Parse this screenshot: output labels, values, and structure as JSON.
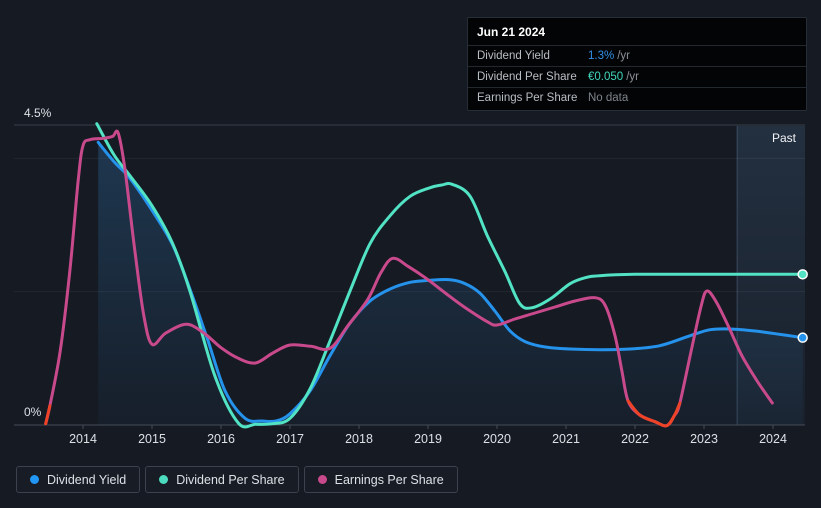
{
  "tooltip": {
    "date": "Jun 21 2024",
    "rows": [
      {
        "label": "Dividend Yield",
        "value": "1.3%",
        "suffix": "/yr",
        "value_color": "#3291e8"
      },
      {
        "label": "Dividend Per Share",
        "value": "€0.050",
        "suffix": "/yr",
        "value_color": "#40d9bd"
      },
      {
        "label": "Earnings Per Share",
        "value": "No data",
        "suffix": "",
        "value_color": "#7f858d"
      }
    ]
  },
  "legend": [
    {
      "label": "Dividend Yield",
      "color": "#2196f3"
    },
    {
      "label": "Dividend Per Share",
      "color": "#4ddbc0"
    },
    {
      "label": "Earnings Per Share",
      "color": "#c94a8c"
    }
  ],
  "labels": {
    "y_top": "4.5%",
    "y_bottom": "0%",
    "past": "Past"
  },
  "colors": {
    "background": "#151a23",
    "yield_line": "#2592ec",
    "dps_line": "#52e2c4",
    "eps_line": "#c94a8c",
    "eps_negative": "#ef4327",
    "grid_strong": "#39404b",
    "grid_faint": "rgba(255,255,255,0.06)",
    "axis": "#454b54",
    "fill_top": "rgba(49,116,173,0.32)",
    "fill_bottom": "rgba(49,116,173,0.05)",
    "past_band_top": "rgba(104,156,208,0.17)",
    "past_band_bottom": "rgba(104,156,208,0.05)",
    "past_divider": "rgba(140,180,220,0.28)"
  },
  "chart_data": {
    "type": "line",
    "title": "Dividend history",
    "x_range": [
      2013.0,
      2024.46
    ],
    "ylim_percent": [
      0,
      4.5
    ],
    "y_gridlines_percent": [
      0,
      2,
      4,
      4.5
    ],
    "x_ticks": [
      "2014",
      "2015",
      "2016",
      "2017",
      "2018",
      "2019",
      "2020",
      "2021",
      "2022",
      "2023",
      "2024"
    ],
    "x_tick_years": [
      2014,
      2015,
      2016,
      2017,
      2018,
      2019,
      2020,
      2021,
      2022,
      2023,
      2024
    ],
    "past_region_start_year": 2023.48,
    "legend_position": "bottom",
    "series": [
      {
        "name": "Dividend Yield",
        "unit": "%",
        "end_value_label": "1.3% /yr",
        "area_fill": true,
        "end_dot": true,
        "points": [
          [
            2014.22,
            4.24
          ],
          [
            2014.45,
            3.95
          ],
          [
            2014.68,
            3.7
          ],
          [
            2015.0,
            3.22
          ],
          [
            2015.3,
            2.7
          ],
          [
            2015.55,
            2.04
          ],
          [
            2015.8,
            1.3
          ],
          [
            2016.06,
            0.51
          ],
          [
            2016.35,
            0.1
          ],
          [
            2016.6,
            0.06
          ],
          [
            2016.8,
            0.06
          ],
          [
            2017.0,
            0.17
          ],
          [
            2017.29,
            0.51
          ],
          [
            2017.58,
            1.04
          ],
          [
            2017.87,
            1.53
          ],
          [
            2018.16,
            1.86
          ],
          [
            2018.45,
            2.04
          ],
          [
            2018.74,
            2.14
          ],
          [
            2019.03,
            2.17
          ],
          [
            2019.32,
            2.18
          ],
          [
            2019.54,
            2.12
          ],
          [
            2019.75,
            1.98
          ],
          [
            2019.97,
            1.71
          ],
          [
            2020.19,
            1.41
          ],
          [
            2020.41,
            1.25
          ],
          [
            2020.7,
            1.17
          ],
          [
            2021.06,
            1.14
          ],
          [
            2021.49,
            1.13
          ],
          [
            2021.93,
            1.14
          ],
          [
            2022.36,
            1.19
          ],
          [
            2022.8,
            1.34
          ],
          [
            2023.09,
            1.43
          ],
          [
            2023.38,
            1.44
          ],
          [
            2023.74,
            1.41
          ],
          [
            2024.03,
            1.37
          ],
          [
            2024.43,
            1.31
          ]
        ]
      },
      {
        "name": "Dividend Per Share",
        "unit": "display_percent_scale",
        "end_value_label": "€0.050 /yr",
        "area_fill": false,
        "end_dot": true,
        "points": [
          [
            2014.2,
            4.52
          ],
          [
            2014.45,
            4.05
          ],
          [
            2014.68,
            3.74
          ],
          [
            2015.0,
            3.29
          ],
          [
            2015.3,
            2.72
          ],
          [
            2015.55,
            2.01
          ],
          [
            2015.91,
            0.74
          ],
          [
            2016.25,
            0.03
          ],
          [
            2016.5,
            0.01
          ],
          [
            2016.75,
            0.02
          ],
          [
            2017.0,
            0.1
          ],
          [
            2017.29,
            0.54
          ],
          [
            2017.58,
            1.26
          ],
          [
            2017.87,
            2.01
          ],
          [
            2018.16,
            2.72
          ],
          [
            2018.45,
            3.14
          ],
          [
            2018.74,
            3.43
          ],
          [
            2019.03,
            3.56
          ],
          [
            2019.2,
            3.6
          ],
          [
            2019.35,
            3.61
          ],
          [
            2019.61,
            3.43
          ],
          [
            2019.86,
            2.84
          ],
          [
            2020.12,
            2.29
          ],
          [
            2020.33,
            1.82
          ],
          [
            2020.51,
            1.76
          ],
          [
            2020.77,
            1.89
          ],
          [
            2021.06,
            2.12
          ],
          [
            2021.28,
            2.21
          ],
          [
            2021.49,
            2.24
          ],
          [
            2022.0,
            2.26
          ],
          [
            2023.0,
            2.26
          ],
          [
            2024.43,
            2.26
          ]
        ]
      },
      {
        "name": "Earnings Per Share",
        "unit": "display_percent_scale",
        "end_value_label": "No data",
        "area_fill": false,
        "end_dot": false,
        "negative_color_ranges_year": [
          [
            2013.4,
            2013.54
          ],
          [
            2021.88,
            2022.67
          ]
        ],
        "points": [
          [
            2013.46,
            0.02
          ],
          [
            2013.52,
            0.29
          ],
          [
            2013.67,
            1.11
          ],
          [
            2013.81,
            2.32
          ],
          [
            2013.93,
            3.67
          ],
          [
            2014.0,
            4.19
          ],
          [
            2014.1,
            4.28
          ],
          [
            2014.3,
            4.3
          ],
          [
            2014.43,
            4.33
          ],
          [
            2014.51,
            4.38
          ],
          [
            2014.61,
            3.82
          ],
          [
            2014.75,
            2.62
          ],
          [
            2014.88,
            1.65
          ],
          [
            2015.0,
            1.21
          ],
          [
            2015.2,
            1.38
          ],
          [
            2015.5,
            1.51
          ],
          [
            2015.75,
            1.38
          ],
          [
            2016.0,
            1.16
          ],
          [
            2016.25,
            1.0
          ],
          [
            2016.5,
            0.93
          ],
          [
            2016.75,
            1.08
          ],
          [
            2017.0,
            1.2
          ],
          [
            2017.3,
            1.18
          ],
          [
            2017.58,
            1.15
          ],
          [
            2017.84,
            1.49
          ],
          [
            2018.13,
            1.89
          ],
          [
            2018.32,
            2.29
          ],
          [
            2018.49,
            2.5
          ],
          [
            2018.71,
            2.38
          ],
          [
            2018.96,
            2.21
          ],
          [
            2019.25,
            1.98
          ],
          [
            2019.54,
            1.76
          ],
          [
            2019.86,
            1.55
          ],
          [
            2020.0,
            1.5
          ],
          [
            2020.26,
            1.59
          ],
          [
            2020.55,
            1.68
          ],
          [
            2020.84,
            1.77
          ],
          [
            2021.13,
            1.86
          ],
          [
            2021.42,
            1.91
          ],
          [
            2021.57,
            1.79
          ],
          [
            2021.71,
            1.34
          ],
          [
            2021.81,
            0.81
          ],
          [
            2021.9,
            0.36
          ],
          [
            2022.07,
            0.15
          ],
          [
            2022.29,
            0.05
          ],
          [
            2022.46,
            -0.01
          ],
          [
            2022.57,
            0.14
          ],
          [
            2022.65,
            0.33
          ],
          [
            2022.83,
            1.19
          ],
          [
            2022.96,
            1.79
          ],
          [
            2023.04,
            2.01
          ],
          [
            2023.17,
            1.86
          ],
          [
            2023.35,
            1.49
          ],
          [
            2023.55,
            1.04
          ],
          [
            2023.77,
            0.66
          ],
          [
            2023.99,
            0.33
          ]
        ]
      }
    ]
  }
}
